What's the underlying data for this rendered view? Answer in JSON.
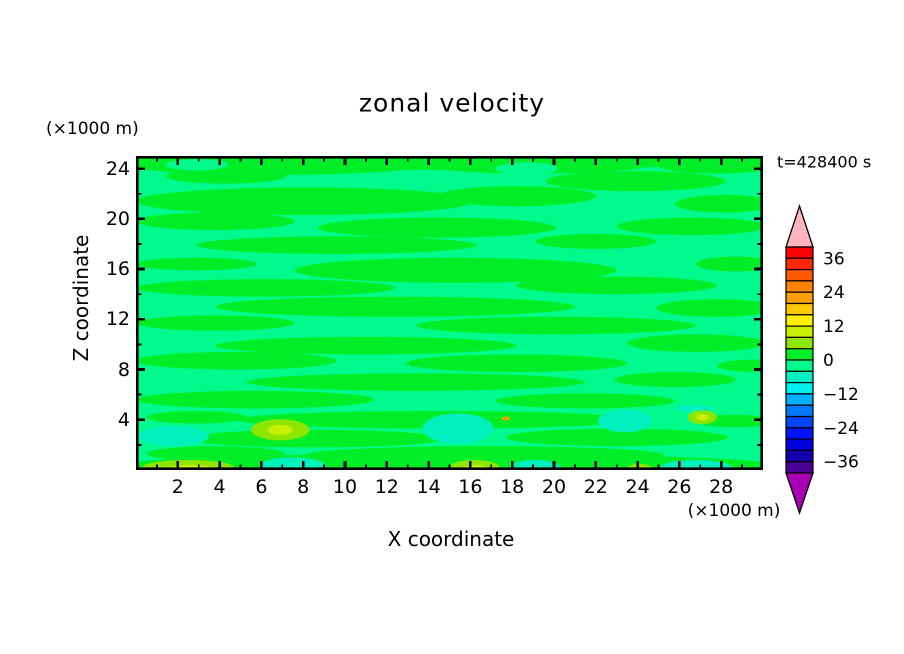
{
  "title": "zonal velocity",
  "time_label": "t=428400 s",
  "axes": {
    "x": {
      "label": "X coordinate",
      "unit": "(×1000 m)",
      "range": [
        0,
        30
      ],
      "major_ticks": [
        2,
        4,
        6,
        8,
        10,
        12,
        14,
        16,
        18,
        20,
        22,
        24,
        26,
        28
      ],
      "minor_tick_step": 1
    },
    "z": {
      "label": "Z coordinate",
      "unit": "(×1000 m)",
      "range": [
        0,
        25
      ],
      "major_ticks": [
        4,
        8,
        12,
        16,
        20,
        24
      ],
      "minor_tick_step": 2
    }
  },
  "colorbar": {
    "tick_values": [
      36,
      24,
      12,
      0,
      -12,
      -24,
      -36
    ],
    "tick_labels": [
      "36",
      "24",
      "12",
      "0",
      "−12",
      "−24",
      "−36"
    ],
    "level_min": -40,
    "level_max": 40,
    "interval": 4,
    "colors_top_to_bottom": [
      "#FF0000",
      "#FF2800",
      "#FF5A00",
      "#FF8200",
      "#FFA000",
      "#FFC800",
      "#FFF000",
      "#C8F000",
      "#8CE600",
      "#00EE28",
      "#00FA8C",
      "#00F0BE",
      "#00F0F0",
      "#00AFFF",
      "#0078FF",
      "#0046FF",
      "#0014FF",
      "#0000DC",
      "#1400AA",
      "#4B0096"
    ],
    "over_arrow_color": "#FFB4BE",
    "under_arrow_color": "#AA00B4"
  },
  "chart_data": {
    "type": "heatmap",
    "subtype": "filled-contour",
    "title": "zonal velocity",
    "xlabel": "X coordinate",
    "ylabel": "Z coordinate",
    "x_unit": "(×1000 m)",
    "y_unit": "(×1000 m)",
    "xlim": [
      0,
      30
    ],
    "ylim": [
      0,
      25
    ],
    "time_annotation": "t=428400 s",
    "contour_interval": 4,
    "value_range_shown": [
      -40,
      40
    ],
    "colorbar_tick_labels": [
      36,
      24,
      12,
      0,
      -12,
      -24,
      -36
    ],
    "legend_position": "right vertical colorbar with over/under arrows",
    "grid": false,
    "description": "Vertical cross-section of zonal velocity at t=428400 s. Field is dominated by near-zero values: wavy horizontal streaks alternating between the -4..0 band (mint green background) and the 0..4 band (green). Small stronger anomalies appear near the bottom boundary (z < 5 km): negative patches of -8..-4 and positive patches of 4..8 to 8..12, plus one tiny strong positive spot.",
    "background_band": [
      -4,
      0
    ],
    "streak_band": [
      0,
      4
    ],
    "green_streaks_xz_ellipses": [
      [
        15.0,
        24.9,
        16.0,
        1.0
      ],
      [
        15.0,
        0.3,
        16.0,
        1.0
      ],
      [
        6.7,
        24.3,
        7.2,
        0.8
      ],
      [
        19.1,
        24.4,
        5.7,
        0.8
      ],
      [
        27.8,
        24.3,
        2.9,
        0.7
      ],
      [
        23.9,
        23.0,
        4.3,
        0.8
      ],
      [
        4.3,
        23.4,
        2.9,
        0.6
      ],
      [
        8.1,
        21.4,
        8.1,
        1.1
      ],
      [
        18.2,
        21.8,
        3.8,
        0.8
      ],
      [
        28.2,
        21.2,
        2.4,
        0.7
      ],
      [
        3.8,
        19.8,
        3.8,
        0.7
      ],
      [
        14.4,
        19.3,
        5.7,
        0.8
      ],
      [
        26.6,
        19.4,
        3.6,
        0.7
      ],
      [
        9.6,
        17.9,
        6.7,
        0.7
      ],
      [
        22.0,
        18.2,
        2.9,
        0.6
      ],
      [
        15.3,
        15.9,
        7.7,
        1.0
      ],
      [
        28.7,
        16.4,
        1.9,
        0.6
      ],
      [
        2.9,
        16.4,
        2.9,
        0.5
      ],
      [
        6.2,
        14.5,
        6.2,
        0.7
      ],
      [
        23.0,
        14.7,
        4.8,
        0.7
      ],
      [
        12.4,
        13.0,
        8.6,
        0.8
      ],
      [
        27.8,
        12.9,
        2.9,
        0.7
      ],
      [
        3.8,
        11.7,
        3.8,
        0.6
      ],
      [
        20.1,
        11.5,
        6.7,
        0.7
      ],
      [
        11.0,
        9.9,
        7.2,
        0.7
      ],
      [
        26.8,
        10.1,
        3.3,
        0.7
      ],
      [
        4.8,
        8.7,
        4.8,
        0.7
      ],
      [
        18.2,
        8.5,
        5.3,
        0.7
      ],
      [
        29.7,
        8.3,
        1.9,
        0.5
      ],
      [
        13.4,
        7.0,
        8.1,
        0.7
      ],
      [
        25.8,
        7.2,
        2.9,
        0.6
      ],
      [
        5.7,
        5.6,
        5.7,
        0.7
      ],
      [
        21.5,
        5.5,
        4.3,
        0.6
      ],
      [
        14.4,
        4.0,
        9.6,
        0.7
      ],
      [
        2.9,
        4.2,
        2.4,
        0.5
      ],
      [
        28.7,
        3.9,
        1.9,
        0.5
      ],
      [
        8.6,
        2.5,
        6.2,
        0.7
      ],
      [
        23.0,
        2.6,
        5.3,
        0.7
      ],
      [
        16.7,
        1.2,
        8.6,
        0.7
      ],
      [
        3.8,
        1.3,
        3.3,
        0.6
      ]
    ],
    "features_xz_ellipses": [
      {
        "band": [
          -4,
          0
        ],
        "cx": 2.9,
        "cz": 24.3,
        "rx": 1.5,
        "rz": 0.45
      },
      {
        "band": [
          -4,
          0
        ],
        "cx": 18.7,
        "cz": 24.0,
        "rx": 1.5,
        "rz": 0.5
      },
      {
        "band": [
          -8,
          -4
        ],
        "cx": 1.8,
        "cz": 2.7,
        "rx": 1.7,
        "rz": 0.8
      },
      {
        "band": [
          -8,
          -4
        ],
        "cx": 15.4,
        "cz": 3.3,
        "rx": 1.7,
        "rz": 1.2
      },
      {
        "band": [
          -8,
          -4
        ],
        "cx": 23.4,
        "cz": 3.9,
        "rx": 1.3,
        "rz": 0.9
      },
      {
        "band": [
          -8,
          -4
        ],
        "cx": 7.5,
        "cz": 0.3,
        "rx": 1.6,
        "rz": 0.7
      },
      {
        "band": [
          -8,
          -4
        ],
        "cx": 19.1,
        "cz": 0.2,
        "rx": 1.2,
        "rz": 0.6
      },
      {
        "band": [
          -8,
          -4
        ],
        "cx": 26.8,
        "cz": 0.2,
        "rx": 1.7,
        "rz": 0.6
      },
      {
        "band": [
          -8,
          -4
        ],
        "cx": 26.7,
        "cz": 4.9,
        "rx": 0.9,
        "rz": 0.3
      },
      {
        "band": [
          4,
          8
        ],
        "cx": 2.5,
        "cz": 0.2,
        "rx": 2.2,
        "rz": 0.6
      },
      {
        "band": [
          4,
          8
        ],
        "cx": 6.9,
        "cz": 3.2,
        "rx": 1.4,
        "rz": 0.85
      },
      {
        "band": [
          4,
          8
        ],
        "cx": 16.2,
        "cz": 0.2,
        "rx": 1.2,
        "rz": 0.6
      },
      {
        "band": [
          4,
          8
        ],
        "cx": 24.1,
        "cz": 0.1,
        "rx": 0.6,
        "rz": 0.4
      },
      {
        "band": [
          4,
          8
        ],
        "cx": 27.1,
        "cz": 4.2,
        "rx": 0.7,
        "rz": 0.55
      },
      {
        "band": [
          8,
          12
        ],
        "cx": 2.6,
        "cz": 0.1,
        "rx": 1.1,
        "rz": 0.3
      },
      {
        "band": [
          8,
          12
        ],
        "cx": 6.9,
        "cz": 3.2,
        "rx": 0.6,
        "rz": 0.4
      },
      {
        "band": [
          8,
          12
        ],
        "cx": 16.2,
        "cz": 0.1,
        "rx": 0.6,
        "rz": 0.3
      },
      {
        "band": [
          8,
          12
        ],
        "cx": 27.1,
        "cz": 4.2,
        "rx": 0.3,
        "rz": 0.25
      },
      {
        "band": [
          20,
          24
        ],
        "cx": 17.7,
        "cz": 4.1,
        "rx": 0.2,
        "rz": 0.15
      }
    ]
  }
}
